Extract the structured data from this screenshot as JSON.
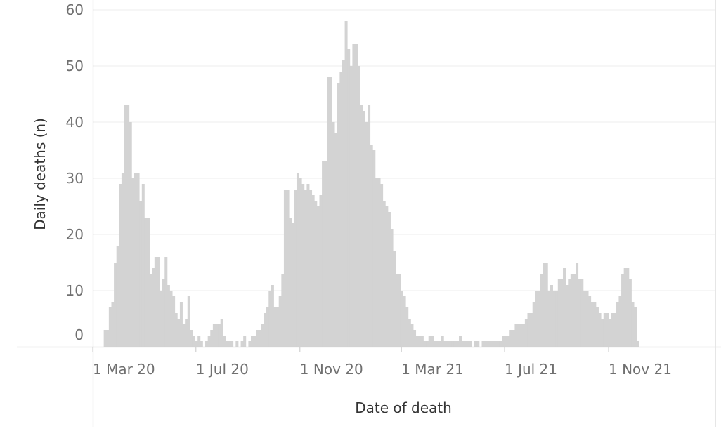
{
  "chart_data": {
    "type": "bar",
    "title": "",
    "xlabel": "Date of death",
    "ylabel": "Daily deaths (n)",
    "ylim": [
      0,
      60
    ],
    "y_ticks": [
      0,
      10,
      20,
      30,
      40,
      50,
      60
    ],
    "y_tick_labels": [
      "0",
      "10",
      "20",
      "30",
      "40",
      "50",
      "60"
    ],
    "x_ticks": [
      {
        "date": "2020-03-01",
        "label": "1 Mar 20"
      },
      {
        "date": "2020-07-01",
        "label": "1 Jul 20"
      },
      {
        "date": "2020-11-01",
        "label": "1 Nov 20"
      },
      {
        "date": "2021-03-01",
        "label": "1 Mar 21"
      },
      {
        "date": "2021-07-01",
        "label": "1 Jul 21"
      },
      {
        "date": "2021-11-01",
        "label": "1 Nov 21"
      }
    ],
    "bar_color": "#d3d3d3",
    "grid": "horizontal",
    "series": [
      {
        "x_start": "2020-03-14",
        "interval_days": 3,
        "values": [
          3,
          3,
          7,
          8,
          15,
          18,
          29,
          31,
          43,
          43,
          40,
          30,
          31,
          31,
          26,
          29,
          23,
          23,
          13,
          14,
          16,
          16,
          10,
          12,
          16,
          11,
          10,
          9,
          6,
          5,
          8,
          4,
          5,
          9,
          3,
          2,
          1,
          2,
          1,
          0,
          1,
          2,
          3,
          4,
          4,
          4,
          5,
          2,
          1,
          1,
          1,
          0,
          1,
          0,
          1,
          2,
          0,
          1,
          2,
          2,
          3,
          3,
          4,
          6,
          7,
          10,
          11,
          7,
          7,
          9,
          13,
          28,
          28,
          23,
          22,
          28,
          31,
          30,
          29,
          28,
          29,
          28,
          27,
          26,
          25,
          27,
          33,
          33,
          48,
          48,
          40,
          38,
          47,
          49,
          51,
          58,
          53,
          50,
          54,
          54,
          50,
          43,
          42,
          40,
          43,
          36,
          35,
          30,
          30,
          29,
          26,
          25,
          24,
          21,
          17,
          13,
          13,
          10,
          9,
          7,
          5,
          4,
          3,
          2,
          2,
          2,
          1,
          1,
          2,
          2,
          1,
          1,
          1,
          2,
          1,
          1,
          1,
          1,
          1,
          1,
          2,
          1,
          1,
          1,
          1,
          0,
          1,
          1,
          0,
          1,
          1,
          1,
          1,
          1,
          1,
          1,
          1,
          2,
          2,
          2,
          3,
          3,
          4,
          4,
          4,
          4,
          5,
          6,
          6,
          8,
          10,
          10,
          13,
          15,
          15,
          10,
          11,
          10,
          10,
          12,
          12,
          14,
          11,
          12,
          13,
          13,
          15,
          12,
          12,
          10,
          10,
          9,
          8,
          8,
          7,
          6,
          5,
          6,
          6,
          5,
          6,
          6,
          8,
          9,
          13,
          14,
          14,
          12,
          8,
          7,
          1
        ]
      }
    ]
  }
}
